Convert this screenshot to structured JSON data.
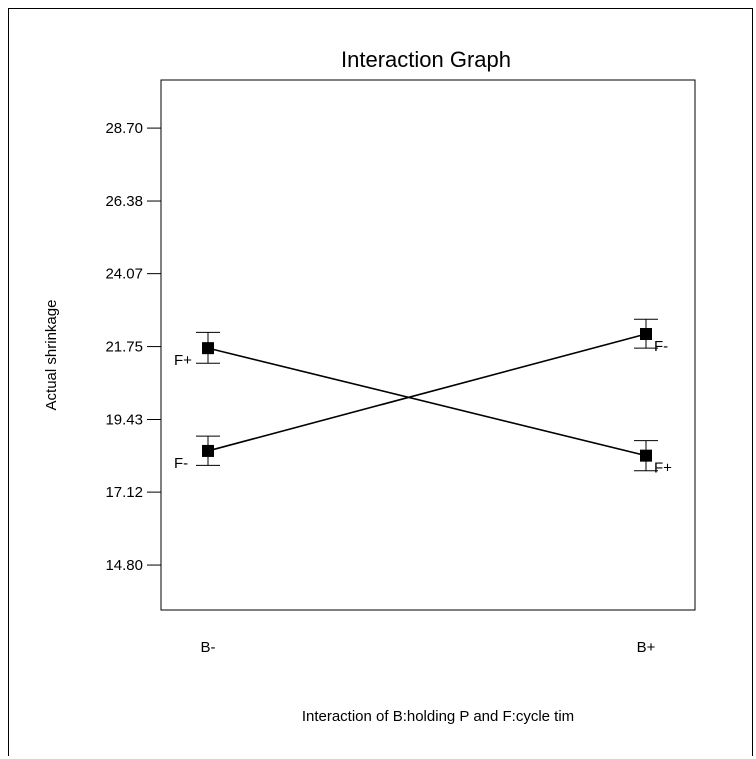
{
  "chart_data": {
    "type": "line",
    "title": "Interaction Graph",
    "xlabel": "Interaction of B:holding P and F:cycle tim",
    "ylabel": "Actual shrinkage",
    "categories": [
      "B-",
      "B+"
    ],
    "y_ticks": [
      "28.70",
      "26.38",
      "24.07",
      "21.75",
      "19.43",
      "17.12",
      "14.80"
    ],
    "ylim": [
      13.37,
      30.23
    ],
    "grid": false,
    "series": [
      {
        "name": "F+",
        "values": [
          21.7,
          18.28
        ],
        "error_low": [
          21.22,
          17.8
        ],
        "error_high": [
          22.2,
          18.76
        ],
        "point_labels": [
          "F+",
          "F+"
        ]
      },
      {
        "name": "F-",
        "values": [
          18.43,
          22.15
        ],
        "error_low": [
          17.97,
          21.7
        ],
        "error_high": [
          18.9,
          22.62
        ],
        "point_labels": [
          "F-",
          "F-"
        ]
      }
    ],
    "colors": {
      "line": "#000000",
      "marker": "#000000"
    }
  }
}
